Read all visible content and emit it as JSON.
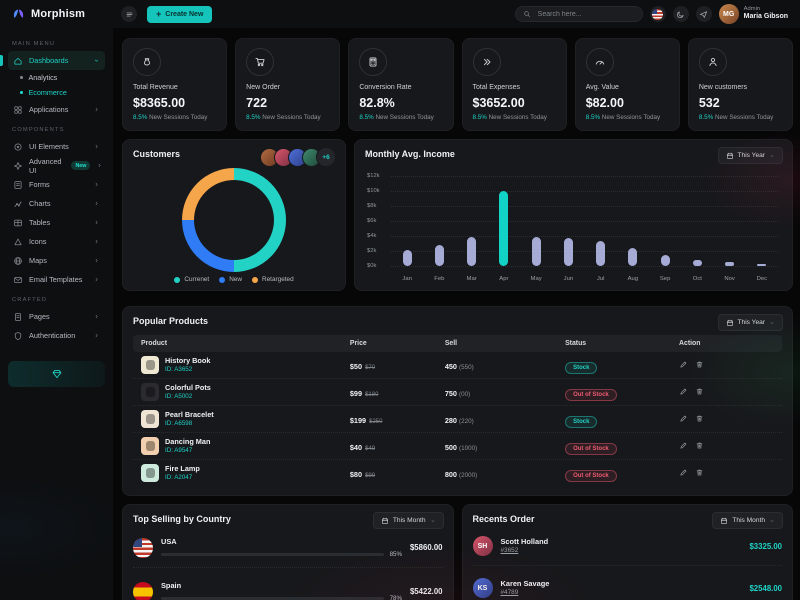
{
  "header": {
    "logo": "Morphism",
    "create_button": "Create New",
    "search_placeholder": "Search here...",
    "user_role": "Admin",
    "user_name": "Maria Gibson"
  },
  "sidebar": {
    "sections": [
      {
        "label": "MAIN MENU",
        "items": [
          {
            "label": "Dashboards",
            "icon": "home-icon",
            "active": true,
            "chevron": "down",
            "children": [
              {
                "label": "Analytics",
                "active": false
              },
              {
                "label": "Ecommerce",
                "active": true
              }
            ]
          },
          {
            "label": "Applications",
            "icon": "apps-icon",
            "chevron": "right"
          }
        ]
      },
      {
        "label": "COMPONENTS",
        "items": [
          {
            "label": "UI Elements",
            "icon": "ui-elements-icon",
            "chevron": "right"
          },
          {
            "label": "Advanced UI",
            "icon": "advanced-ui-icon",
            "badge": "New",
            "chevron": "right"
          },
          {
            "label": "Forms",
            "icon": "forms-icon",
            "chevron": "right"
          },
          {
            "label": "Charts",
            "icon": "charts-icon",
            "chevron": "right"
          },
          {
            "label": "Tables",
            "icon": "tables-icon",
            "chevron": "right"
          },
          {
            "label": "Icons",
            "icon": "icons-icon",
            "chevron": "right"
          },
          {
            "label": "Maps",
            "icon": "maps-icon",
            "chevron": "right"
          },
          {
            "label": "Email Templates",
            "icon": "email-icon",
            "chevron": "right"
          }
        ]
      },
      {
        "label": "CRAFTED",
        "items": [
          {
            "label": "Pages",
            "icon": "pages-icon",
            "chevron": "right"
          },
          {
            "label": "Authentication",
            "icon": "auth-icon",
            "chevron": "right"
          }
        ]
      }
    ]
  },
  "stats": {
    "cards": [
      {
        "icon": "moneybag-icon",
        "label": "Total Revenue",
        "value": "$8365.00",
        "delta": "8.5%",
        "delta_text": "New Sessions Today"
      },
      {
        "icon": "cart-icon",
        "label": "New Order",
        "value": "722",
        "delta": "8.5%",
        "delta_text": "New Sessions Today"
      },
      {
        "icon": "calculator-icon",
        "label": "Conversion Rate",
        "value": "82.8%",
        "delta": "8.5%",
        "delta_text": "New Sessions Today"
      },
      {
        "icon": "double-chevron-icon",
        "label": "Total Expenses",
        "value": "$3652.00",
        "delta": "8.5%",
        "delta_text": "New Sessions Today"
      },
      {
        "icon": "gauge-icon",
        "label": "Avg. Value",
        "value": "$82.00",
        "delta": "8.5%",
        "delta_text": "New Sessions Today"
      },
      {
        "icon": "person-icon",
        "label": "New customers",
        "value": "532",
        "delta": "8.5%",
        "delta_text": "New Sessions Today"
      }
    ]
  },
  "customers": {
    "title": "Customers",
    "more_count": "+6",
    "avatar_count": 4
  },
  "income": {
    "title": "Monthly Avg. Income",
    "filter_label": "This Year"
  },
  "chart_data": [
    {
      "type": "pie",
      "title": "Customers",
      "labels": [
        "Currenet",
        "New",
        "Retargeted"
      ],
      "values": [
        50,
        25,
        25
      ],
      "colors": [
        "#22d3c5",
        "#2f7cf6",
        "#f5a54a"
      ],
      "legend_position": "bottom"
    },
    {
      "type": "bar",
      "title": "Monthly Avg. Income",
      "categories": [
        "Jan",
        "Feb",
        "Mar",
        "Apr",
        "May",
        "Jun",
        "Jul",
        "Aug",
        "Sep",
        "Oct",
        "Nov",
        "Dec"
      ],
      "values": [
        2.2,
        2.8,
        3.9,
        10,
        3.9,
        3.7,
        3.3,
        2.4,
        1.5,
        0.8,
        0.5,
        0.3
      ],
      "unit": "k USD",
      "ylim": [
        0,
        12
      ],
      "yticks": [
        "$12k",
        "$10k",
        "$8k",
        "$6k",
        "$4k",
        "$2k",
        "$0k"
      ],
      "grid": "dotted",
      "highlight_index": 3,
      "bar_color": "#a6abd6",
      "highlight_color": "#12d2c6"
    }
  ],
  "products": {
    "title": "Popular Products",
    "filter_label": "This Year",
    "columns": [
      "Product",
      "Price",
      "Sell",
      "Status",
      "Action"
    ],
    "rows": [
      {
        "name": "History Book",
        "id": "ID: A3652",
        "price": "$50",
        "old_price": "$70",
        "sell": "450",
        "sell_total": "(550)",
        "status": "Stock",
        "status_type": "in",
        "thumb_color": "#efe8d2"
      },
      {
        "name": "Colorful Pots",
        "id": "ID: A5002",
        "price": "$99",
        "old_price": "$180",
        "sell": "750",
        "sell_total": "(00)",
        "status": "Out of Stock",
        "status_type": "out",
        "thumb_color": "#2a2a30"
      },
      {
        "name": "Pearl Bracelet",
        "id": "ID: A6598",
        "price": "$199",
        "old_price": "$250",
        "sell": "280",
        "sell_total": "(220)",
        "status": "Stock",
        "status_type": "in",
        "thumb_color": "#f0e4d4"
      },
      {
        "name": "Dancing Man",
        "id": "ID: A9547",
        "price": "$40",
        "old_price": "$49",
        "sell": "500",
        "sell_total": "(1000)",
        "status": "Out of Stock",
        "status_type": "out",
        "thumb_color": "#f2cfae"
      },
      {
        "name": "Fire Lamp",
        "id": "ID: A2047",
        "price": "$80",
        "old_price": "$99",
        "sell": "800",
        "sell_total": "(2000)",
        "status": "Out of Stock",
        "status_type": "out",
        "thumb_color": "#cdeadd"
      }
    ]
  },
  "countries": {
    "title": "Top Selling by Country",
    "filter_label": "This Month",
    "rows": [
      {
        "name": "USA",
        "percent": "85%",
        "percent_value": 85,
        "amount": "$5860.00",
        "flag": "usa"
      },
      {
        "name": "Spain",
        "percent": "78%",
        "percent_value": 78,
        "amount": "$5422.00",
        "flag": "spain"
      }
    ]
  },
  "orders": {
    "title": "Recents Order",
    "filter_label": "This Month",
    "rows": [
      {
        "name": "Scott Holland",
        "order_id": "#3652",
        "amount": "$3325.00"
      },
      {
        "name": "Karen Savage",
        "order_id": "#4789",
        "amount": "$2548.00"
      }
    ]
  },
  "colors": {
    "accent": "#15c5bc",
    "stock_badge": "#22d3c5",
    "out_of_stock_badge": "#ef5b70",
    "sidebar_bg": "#0d0f11",
    "card_bg": "#17181b"
  }
}
